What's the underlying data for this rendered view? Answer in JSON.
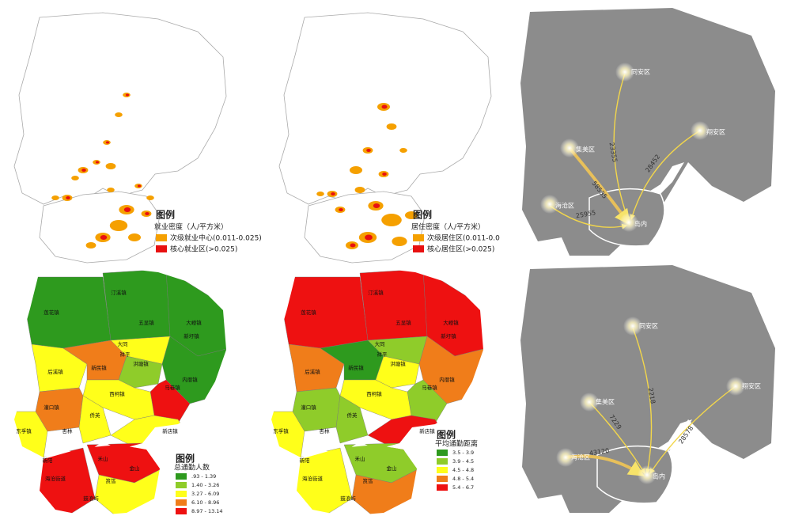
{
  "employment_map": {
    "legend": {
      "title": "图例",
      "subtitle": "就业密度（人/平方米）",
      "items": [
        "次级就业中心(0.011-0.025)",
        "核心就业区(>0.025)"
      ]
    }
  },
  "residence_map": {
    "legend": {
      "title": "图例",
      "subtitle": "居住密度（人/平方米）",
      "items": [
        "次级居住区(0.011-0.0",
        "核心居住区(>0.025)"
      ]
    }
  },
  "flow_map_top": {
    "nodes": [
      "同安区",
      "翔安区",
      "集美区",
      "海沧区",
      "岛内"
    ],
    "flows": [
      23355,
      58535,
      28452,
      25955
    ]
  },
  "flow_map_bottom": {
    "nodes": [
      "同安区",
      "翔安区",
      "集美区",
      "海沧区",
      "岛内"
    ],
    "flows": [
      2218,
      7229,
      43120,
      28578
    ]
  },
  "commute_count_map": {
    "legend": {
      "title": "图例",
      "subtitle": "总通勤人数",
      "items": [
        ".93 - 1.39",
        "1.40 - 3.26",
        "3.27 - 6.09",
        "6.10 - 8.96",
        "8.97 - 13.14"
      ]
    },
    "towns": [
      "汀溪镇",
      "莲花镇",
      "五显镇",
      "大嶝镇",
      "新圩镇",
      "大同",
      "祥平",
      "洪塘镇",
      "后溪镇",
      "新民镇",
      "西柯镇",
      "马巷镇",
      "内厝镇",
      "灌口镇",
      "侨英",
      "杏林",
      "东孚镇",
      "新店镇",
      "新阳",
      "海沧街道",
      "禾山",
      "金山",
      "筼筜",
      "鼓浪屿"
    ]
  },
  "commute_distance_map": {
    "legend": {
      "title": "图例",
      "subtitle": "平均通勤距离",
      "items": [
        "3.5 - 3.9",
        "3.9 - 4.5",
        "4.5 - 4.8",
        "4.8 - 5.4",
        "5.4 - 6.7"
      ]
    },
    "towns": [
      "汀溪镇",
      "莲花镇",
      "五显镇",
      "大嶝镇",
      "新圩镇",
      "大同",
      "祥平",
      "洪塘镇",
      "后溪镇",
      "新民镇",
      "西柯镇",
      "马巷镇",
      "内厝镇",
      "灌口镇",
      "侨英",
      "杏林",
      "东孚镇",
      "新店镇",
      "新阳",
      "海沧街道",
      "禾山",
      "金山",
      "筼筜",
      "鼓浪屿"
    ]
  }
}
